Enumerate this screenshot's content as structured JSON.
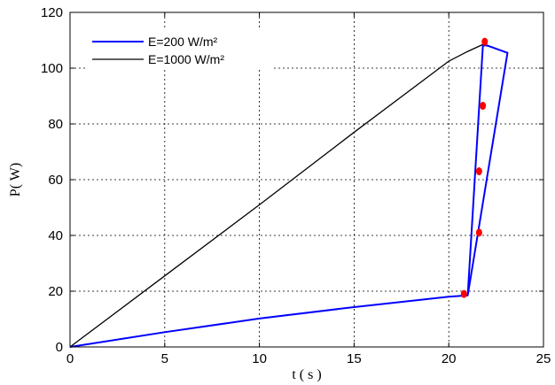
{
  "chart_data": {
    "type": "line",
    "title": "",
    "xlabel": "t ( s )",
    "ylabel": "P( W)",
    "xlim": [
      0,
      25
    ],
    "ylim": [
      0,
      120
    ],
    "xticks": [
      0,
      5,
      10,
      15,
      20,
      25
    ],
    "yticks": [
      0,
      20,
      40,
      60,
      80,
      100,
      120
    ],
    "grid": true,
    "legend_position": "top-left",
    "series": [
      {
        "name": "E=200 W/m²",
        "color": "#0000ff",
        "x": [
          0,
          5,
          10,
          15,
          20,
          21.0,
          23.1,
          22.0,
          21.8,
          21.0
        ],
        "y": [
          0,
          5.3,
          10.2,
          14.3,
          18.0,
          18.5,
          105.5,
          108.2,
          108.0,
          18.5
        ]
      },
      {
        "name": "E=1000 W/m²",
        "color": "#000000",
        "x": [
          0,
          5,
          10,
          15,
          20,
          21.0,
          21.8,
          22.1
        ],
        "y": [
          0,
          25.5,
          51.0,
          77.0,
          102.5,
          106.0,
          108.5,
          107.8
        ]
      },
      {
        "name": "",
        "color": "#ff0000",
        "marker": "dot",
        "x": [
          20.8,
          21.6,
          21.6,
          21.8,
          21.9
        ],
        "y": [
          19.0,
          41.0,
          63.0,
          86.5,
          109.5
        ]
      }
    ]
  }
}
